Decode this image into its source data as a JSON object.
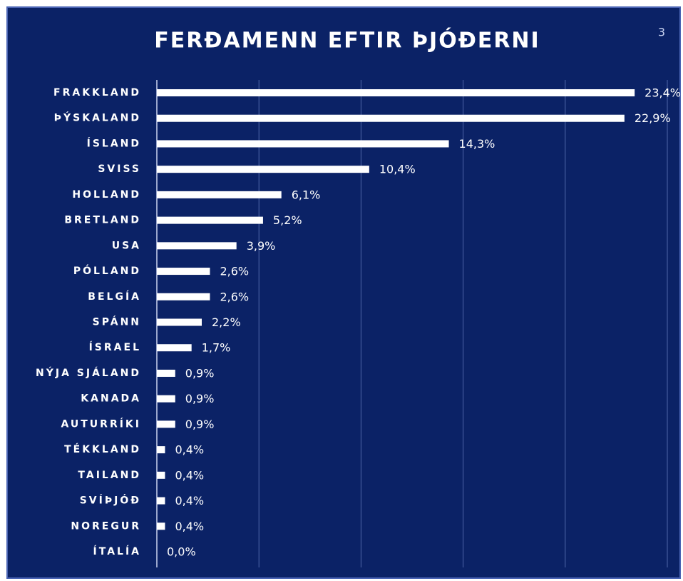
{
  "slide_number": "3",
  "chart_data": {
    "type": "bar",
    "orientation": "horizontal",
    "title": "FERÐAMENN  EFTIR ÞJÓÐERNI",
    "categories": [
      "FRAKKLAND",
      "ÞÝSKALAND",
      "ÍSLAND",
      "SVISS",
      "HOLLAND",
      "BRETLAND",
      "USA",
      "PÓLLAND",
      "BELGÍA",
      "SPÁNN",
      "ÍSRAEL",
      "NÝJA SJÁLAND",
      "KANADA",
      "AUTURRÍKI",
      "TÉKKLAND",
      "TAILAND",
      "SVÍÞJÓÐ",
      "NOREGUR",
      "ÍTALÍA"
    ],
    "values": [
      23.4,
      22.9,
      14.3,
      10.4,
      6.1,
      5.2,
      3.9,
      2.6,
      2.6,
      2.2,
      1.7,
      0.9,
      0.9,
      0.9,
      0.4,
      0.4,
      0.4,
      0.4,
      0.0
    ],
    "value_labels": [
      "23,4%",
      "22,9%",
      "14,3%",
      "10,4%",
      "6,1%",
      "5,2%",
      "3,9%",
      "2,6%",
      "2,6%",
      "2,2%",
      "1,7%",
      "0,9%",
      "0,9%",
      "0,9%",
      "0,4%",
      "0,4%",
      "0,4%",
      "0,4%",
      "0,0%"
    ],
    "color": "#ffffff",
    "xlim": [
      0,
      25
    ],
    "xticks": [
      0,
      5,
      10,
      15,
      20,
      25
    ],
    "grid": true
  }
}
